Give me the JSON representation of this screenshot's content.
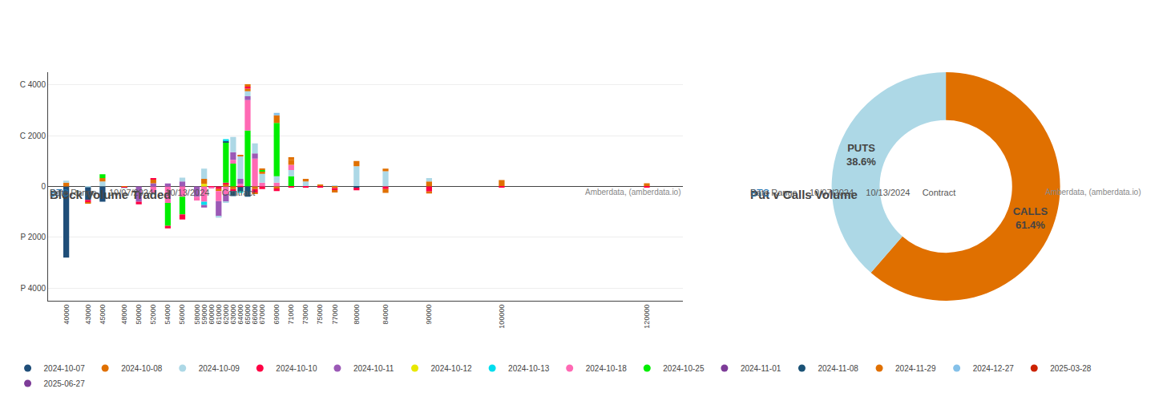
{
  "chart_data": [
    {
      "type": "bar",
      "stacked": true,
      "title": "Block Volume Traded",
      "subtitle": "BTC",
      "annotations": [
        "Date Range",
        "10/07/2024",
        "10/13/2024",
        "Contract",
        "Amberdata, (amberdata.io)"
      ],
      "xlim": [
        37500,
        125000
      ],
      "xticks": [
        40000,
        43000,
        45000,
        48000,
        50000,
        52000,
        54000,
        56000,
        58000,
        59000,
        60000,
        61000,
        62000,
        63000,
        64000,
        65000,
        66000,
        67000,
        69000,
        71000,
        73000,
        75000,
        77000,
        80000,
        84000,
        90000,
        100000,
        120000
      ],
      "ylim": [
        -4500,
        4500
      ],
      "yticks": [
        {
          "value": -4000,
          "label": "P 4000"
        },
        {
          "value": -2000,
          "label": "P 2000"
        },
        0,
        {
          "value": 2000,
          "label": "C 2000"
        },
        {
          "value": 4000,
          "label": "C 4000"
        }
      ],
      "grid": true,
      "legend": "bottom",
      "legend_entries": [
        {
          "name": "2024-10-07",
          "color": "#1f4e79"
        },
        {
          "name": "2024-10-08",
          "color": "#e07000"
        },
        {
          "name": "2024-10-09",
          "color": "#add8e6"
        },
        {
          "name": "2024-10-10",
          "color": "#ff0044"
        },
        {
          "name": "2024-10-11",
          "color": "#9b59b6"
        },
        {
          "name": "2024-10-12",
          "color": "#e8e800"
        },
        {
          "name": "2024-10-13",
          "color": "#00ddee"
        },
        {
          "name": "2024-10-18",
          "color": "#ff69b4"
        },
        {
          "name": "2024-10-25",
          "color": "#00ee00"
        },
        {
          "name": "2024-11-01",
          "color": "#7d3c98"
        },
        {
          "name": "2024-11-08",
          "color": "#1a5276"
        },
        {
          "name": "2024-11-29",
          "color": "#e07000"
        },
        {
          "name": "2024-12-27",
          "color": "#85c1e9"
        },
        {
          "name": "2025-03-28",
          "color": "#cc2200"
        },
        {
          "name": "2025-06-27",
          "color": "#7d3c98"
        }
      ],
      "bars": [
        {
          "x": 40000,
          "segments": [
            {
              "color": "#1f4e79",
              "value": -2800
            },
            {
              "color": "#e07000",
              "value": 150
            },
            {
              "color": "#add8e6",
              "value": 80
            }
          ]
        },
        {
          "x": 43000,
          "segments": [
            {
              "color": "#add8e6",
              "value": -30
            },
            {
              "color": "#1f4e79",
              "value": -500
            },
            {
              "color": "#ff0044",
              "value": -100
            },
            {
              "color": "#e07000",
              "value": -40
            }
          ]
        },
        {
          "x": 45000,
          "segments": [
            {
              "color": "#add8e6",
              "value": 200
            },
            {
              "color": "#1f4e79",
              "value": -600
            },
            {
              "color": "#e07000",
              "value": 130
            },
            {
              "color": "#00ee00",
              "value": 150
            }
          ]
        },
        {
          "x": 48000,
          "segments": [
            {
              "color": "#e07000",
              "value": -30
            },
            {
              "color": "#ff0044",
              "value": -20
            },
            {
              "color": "#add8e6",
              "value": -20
            }
          ]
        },
        {
          "x": 50000,
          "segments": [
            {
              "color": "#9b59b6",
              "value": -600
            },
            {
              "color": "#ff0044",
              "value": -100
            }
          ]
        },
        {
          "x": 52000,
          "segments": [
            {
              "color": "#ff69b4",
              "value": -250
            },
            {
              "color": "#9b59b6",
              "value": 130
            },
            {
              "color": "#e07000",
              "value": 150
            },
            {
              "color": "#ff0044",
              "value": 50
            },
            {
              "color": "#add8e6",
              "value": -80
            }
          ]
        },
        {
          "x": 54000,
          "segments": [
            {
              "color": "#ff69b4",
              "value": -650
            },
            {
              "color": "#00ee00",
              "value": -900
            },
            {
              "color": "#9b59b6",
              "value": 120
            },
            {
              "color": "#ff0044",
              "value": -100
            }
          ]
        },
        {
          "x": 56000,
          "segments": [
            {
              "color": "#9b59b6",
              "value": 200
            },
            {
              "color": "#ff69b4",
              "value": -400
            },
            {
              "color": "#00ee00",
              "value": -700
            },
            {
              "color": "#ff0044",
              "value": -200
            },
            {
              "color": "#add8e6",
              "value": 150
            }
          ]
        },
        {
          "x": 58000,
          "segments": [
            {
              "color": "#9b59b6",
              "value": -400
            },
            {
              "color": "#ff69b4",
              "value": -150
            }
          ]
        },
        {
          "x": 59000,
          "segments": [
            {
              "color": "#ff69b4",
              "value": -600
            },
            {
              "color": "#00ddee",
              "value": -130
            },
            {
              "color": "#e8e800",
              "value": 100
            },
            {
              "color": "#9b59b6",
              "value": -100
            },
            {
              "color": "#e07000",
              "value": 200
            },
            {
              "color": "#add8e6",
              "value": 400
            }
          ]
        },
        {
          "x": 60000,
          "segments": [
            {
              "color": "#ff0044",
              "value": -20
            },
            {
              "color": "#e07000",
              "value": -20
            },
            {
              "color": "#ff69b4",
              "value": -30
            }
          ]
        },
        {
          "x": 61000,
          "segments": [
            {
              "color": "#ff0044",
              "value": -100
            },
            {
              "color": "#e07000",
              "value": -80
            },
            {
              "color": "#ff69b4",
              "value": -400
            },
            {
              "color": "#9b59b6",
              "value": -600
            },
            {
              "color": "#add8e6",
              "value": -50
            }
          ]
        },
        {
          "x": 62000,
          "segments": [
            {
              "color": "#ff69b4",
              "value": -300
            },
            {
              "color": "#9b59b6",
              "value": -300
            },
            {
              "color": "#e07000",
              "value": 100
            },
            {
              "color": "#add8e6",
              "value": -50
            },
            {
              "color": "#ff0044",
              "value": 50
            },
            {
              "color": "#00ee00",
              "value": 1600
            },
            {
              "color": "#1a5276",
              "value": 60
            },
            {
              "color": "#00ddee",
              "value": 50
            }
          ]
        },
        {
          "x": 63000,
          "segments": [
            {
              "color": "#00ee00",
              "value": 900
            },
            {
              "color": "#ff69b4",
              "value": 150
            },
            {
              "color": "#9b59b6",
              "value": 300
            },
            {
              "color": "#add8e6",
              "value": 600
            },
            {
              "color": "#e07000",
              "value": -100
            },
            {
              "color": "#ff0044",
              "value": -80
            },
            {
              "color": "#1a5276",
              "value": -200
            }
          ]
        },
        {
          "x": 64000,
          "segments": [
            {
              "color": "#ff69b4",
              "value": 100
            },
            {
              "color": "#9b59b6",
              "value": 200
            },
            {
              "color": "#add8e6",
              "value": 900
            },
            {
              "color": "#e07000",
              "value": 50
            },
            {
              "color": "#ff0044",
              "value": -20
            },
            {
              "color": "#1a5276",
              "value": -150
            },
            {
              "color": "#00ddee",
              "value": -80
            }
          ]
        },
        {
          "x": 65000,
          "segments": [
            {
              "color": "#00ee00",
              "value": 2200
            },
            {
              "color": "#ff69b4",
              "value": 1200
            },
            {
              "color": "#9b59b6",
              "value": 150
            },
            {
              "color": "#add8e6",
              "value": 200
            },
            {
              "color": "#e07000",
              "value": 100
            },
            {
              "color": "#ff0044",
              "value": 80
            },
            {
              "color": "#e07000",
              "value": 100
            },
            {
              "color": "#1a5276",
              "value": -400
            }
          ]
        },
        {
          "x": 66000,
          "segments": [
            {
              "color": "#ff69b4",
              "value": 1100
            },
            {
              "color": "#9b59b6",
              "value": 200
            },
            {
              "color": "#add8e6",
              "value": 400
            },
            {
              "color": "#e07000",
              "value": -100
            },
            {
              "color": "#ff0044",
              "value": -150
            },
            {
              "color": "#e07000",
              "value": -50
            }
          ]
        },
        {
          "x": 67000,
          "segments": [
            {
              "color": "#ff69b4",
              "value": 150
            },
            {
              "color": "#add8e6",
              "value": 350
            },
            {
              "color": "#e07000",
              "value": 100
            },
            {
              "color": "#00ee00",
              "value": 50
            },
            {
              "color": "#ff0044",
              "value": -100
            },
            {
              "color": "#e07000",
              "value": 50
            }
          ]
        },
        {
          "x": 69000,
          "segments": [
            {
              "color": "#ff69b4",
              "value": 150
            },
            {
              "color": "#add8e6",
              "value": 250
            },
            {
              "color": "#00ee00",
              "value": 2100
            },
            {
              "color": "#e07000",
              "value": 300
            },
            {
              "color": "#e07000",
              "value": -80
            },
            {
              "color": "#ff0044",
              "value": -100
            },
            {
              "color": "#85c1e9",
              "value": 100
            }
          ]
        },
        {
          "x": 71000,
          "segments": [
            {
              "color": "#00ee00",
              "value": 400
            },
            {
              "color": "#add8e6",
              "value": 250
            },
            {
              "color": "#ff69b4",
              "value": 200
            },
            {
              "color": "#e07000",
              "value": 200
            },
            {
              "color": "#e07000",
              "value": 100
            },
            {
              "color": "#ff0044",
              "value": -50
            }
          ]
        },
        {
          "x": 73000,
          "segments": [
            {
              "color": "#add8e6",
              "value": 200
            },
            {
              "color": "#e07000",
              "value": 100
            },
            {
              "color": "#ff0044",
              "value": -40
            }
          ]
        },
        {
          "x": 75000,
          "segments": [
            {
              "color": "#e07000",
              "value": 80
            },
            {
              "color": "#ff0044",
              "value": -50
            }
          ]
        },
        {
          "x": 77000,
          "segments": [
            {
              "color": "#add8e6",
              "value": 50
            },
            {
              "color": "#e07000",
              "value": -60
            },
            {
              "color": "#ff0044",
              "value": -80
            },
            {
              "color": "#e07000",
              "value": -100
            }
          ]
        },
        {
          "x": 80000,
          "segments": [
            {
              "color": "#add8e6",
              "value": 800
            },
            {
              "color": "#1a5276",
              "value": -50
            },
            {
              "color": "#e07000",
              "value": 200
            },
            {
              "color": "#ff0044",
              "value": -100
            }
          ]
        },
        {
          "x": 84000,
          "segments": [
            {
              "color": "#add8e6",
              "value": 600
            },
            {
              "color": "#ff0044",
              "value": -100
            },
            {
              "color": "#e07000",
              "value": -150
            },
            {
              "color": "#e07000",
              "value": 100
            }
          ]
        },
        {
          "x": 90000,
          "segments": [
            {
              "color": "#e07000",
              "value": 200
            },
            {
              "color": "#ff0044",
              "value": -200
            },
            {
              "color": "#add8e6",
              "value": 130
            },
            {
              "color": "#e07000",
              "value": -80
            }
          ]
        },
        {
          "x": 100000,
          "segments": [
            {
              "color": "#e07000",
              "value": 250
            },
            {
              "color": "#ff0044",
              "value": -50
            }
          ]
        },
        {
          "x": 120000,
          "segments": [
            {
              "color": "#e07000",
              "value": 130
            },
            {
              "color": "#ff0044",
              "value": -40
            }
          ]
        }
      ]
    },
    {
      "type": "donut",
      "title": "Put v Calls Volume",
      "subtitle": "BTC",
      "annotations": [
        "Date Range",
        "10/07/2024",
        "10/13/2024",
        "Contract",
        "Amberdata, (amberdata.io)"
      ],
      "categories": [
        "CALLS",
        "PUTS"
      ],
      "values": [
        61.4,
        38.6
      ],
      "value_labels": [
        "61.4%",
        "38.6%"
      ],
      "colors": [
        "#e07000",
        "#add8e6"
      ],
      "data_labels": true
    }
  ]
}
